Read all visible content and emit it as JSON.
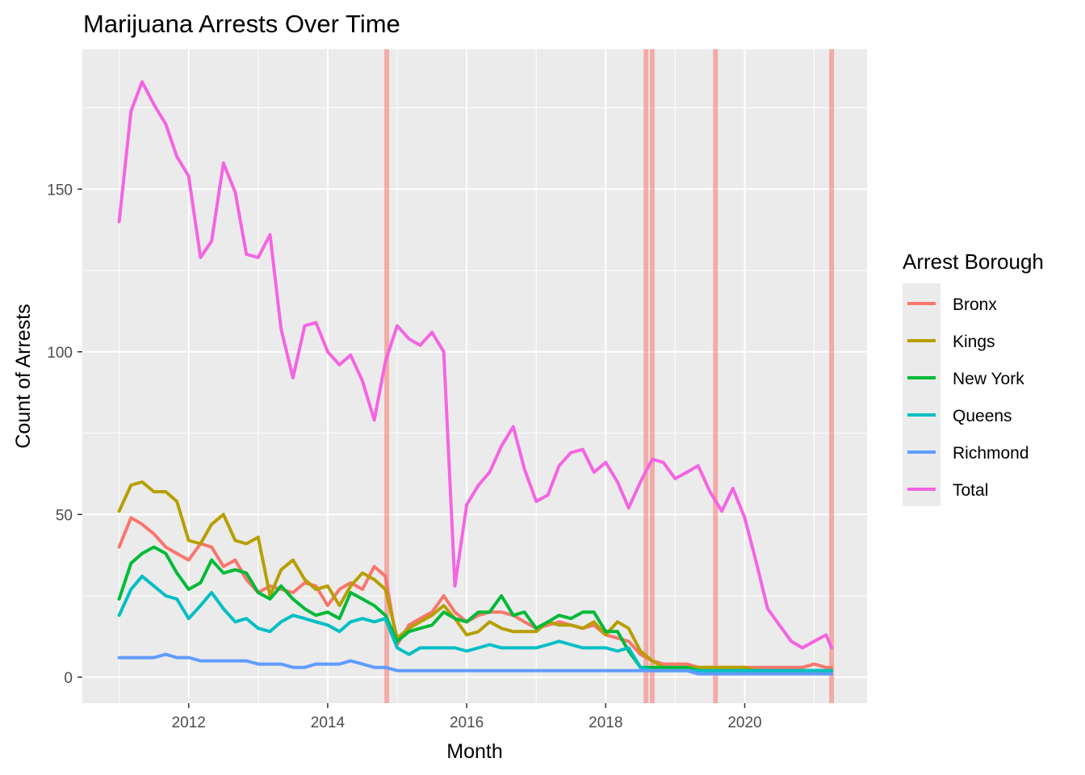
{
  "chart_data": {
    "type": "line",
    "title": "Marijuana Arrests Over Time",
    "xlabel": "Month",
    "ylabel": "Count of Arrests",
    "xlim": [
      2010.47,
      2021.76
    ],
    "ylim": [
      -8,
      193
    ],
    "x_ticks": [
      2012,
      2014,
      2016,
      2018,
      2020
    ],
    "y_ticks": [
      0,
      50,
      100,
      150
    ],
    "grid": true,
    "legend": {
      "title": "Arrest Borough",
      "placement": "right"
    },
    "vlines": [
      {
        "x": 2014.85,
        "color": "#F8766D"
      },
      {
        "x": 2018.58,
        "color": "#F8766D"
      },
      {
        "x": 2018.67,
        "color": "#F8766D"
      },
      {
        "x": 2019.58,
        "color": "#F8766D"
      },
      {
        "x": 2021.25,
        "color": "#F8766D"
      }
    ],
    "x": [
      2011.0,
      2011.17,
      2011.33,
      2011.5,
      2011.67,
      2011.83,
      2012.0,
      2012.17,
      2012.33,
      2012.5,
      2012.67,
      2012.83,
      2013.0,
      2013.17,
      2013.33,
      2013.5,
      2013.67,
      2013.83,
      2014.0,
      2014.17,
      2014.33,
      2014.5,
      2014.67,
      2014.83,
      2015.0,
      2015.17,
      2015.33,
      2015.5,
      2015.67,
      2015.83,
      2016.0,
      2016.17,
      2016.33,
      2016.5,
      2016.67,
      2016.83,
      2017.0,
      2017.17,
      2017.33,
      2017.5,
      2017.67,
      2017.83,
      2018.0,
      2018.17,
      2018.33,
      2018.5,
      2018.67,
      2018.83,
      2019.0,
      2019.17,
      2019.33,
      2019.5,
      2019.67,
      2019.83,
      2020.0,
      2020.17,
      2020.33,
      2020.5,
      2020.67,
      2020.83,
      2021.0,
      2021.17,
      2021.25
    ],
    "series": [
      {
        "name": "Bronx",
        "color": "#F8766D",
        "values": [
          40,
          49,
          47,
          44,
          40,
          38,
          36,
          41,
          40,
          34,
          36,
          30,
          26,
          28,
          27,
          26,
          29,
          28,
          22,
          27,
          29,
          27,
          34,
          31,
          10,
          16,
          18,
          20,
          25,
          20,
          17,
          19,
          20,
          20,
          19,
          17,
          15,
          16,
          17,
          16,
          15,
          16,
          13,
          12,
          11,
          7,
          5,
          4,
          4,
          4,
          3,
          3,
          3,
          3,
          3,
          3,
          3,
          3,
          3,
          3,
          4,
          3,
          3
        ]
      },
      {
        "name": "Kings",
        "color": "#B79F00",
        "values": [
          51,
          59,
          60,
          57,
          57,
          54,
          42,
          41,
          47,
          50,
          42,
          41,
          43,
          25,
          33,
          36,
          30,
          27,
          28,
          22,
          28,
          32,
          30,
          27,
          12,
          15,
          17,
          19,
          22,
          18,
          13,
          14,
          17,
          15,
          14,
          14,
          14,
          17,
          16,
          16,
          15,
          17,
          13,
          17,
          15,
          8,
          5,
          3,
          3,
          3,
          3,
          3,
          3,
          3,
          3,
          2,
          2,
          2,
          2,
          2,
          2,
          2,
          2
        ]
      },
      {
        "name": "New York",
        "color": "#00BA38",
        "values": [
          24,
          35,
          38,
          40,
          38,
          32,
          27,
          29,
          36,
          32,
          33,
          32,
          26,
          24,
          28,
          24,
          21,
          19,
          20,
          18,
          26,
          24,
          22,
          19,
          11,
          14,
          15,
          16,
          20,
          18,
          17,
          20,
          20,
          25,
          19,
          20,
          15,
          17,
          19,
          18,
          20,
          20,
          14,
          14,
          8,
          3,
          3,
          3,
          3,
          3,
          2,
          2,
          2,
          2,
          2,
          2,
          2,
          2,
          2,
          2,
          2,
          2,
          2
        ]
      },
      {
        "name": "Queens",
        "color": "#00BFC4",
        "values": [
          19,
          27,
          31,
          28,
          25,
          24,
          18,
          22,
          26,
          21,
          17,
          18,
          15,
          14,
          17,
          19,
          18,
          17,
          16,
          14,
          17,
          18,
          17,
          18,
          9,
          7,
          9,
          9,
          9,
          9,
          8,
          9,
          10,
          9,
          9,
          9,
          9,
          10,
          11,
          10,
          9,
          9,
          9,
          8,
          9,
          3,
          2,
          2,
          2,
          2,
          2,
          2,
          2,
          2,
          2,
          2,
          2,
          2,
          2,
          2,
          2,
          2,
          2
        ]
      },
      {
        "name": "Richmond",
        "color": "#619CFF",
        "values": [
          6,
          6,
          6,
          6,
          7,
          6,
          6,
          5,
          5,
          5,
          5,
          5,
          4,
          4,
          4,
          3,
          3,
          4,
          4,
          4,
          5,
          4,
          3,
          3,
          2,
          2,
          2,
          2,
          2,
          2,
          2,
          2,
          2,
          2,
          2,
          2,
          2,
          2,
          2,
          2,
          2,
          2,
          2,
          2,
          2,
          2,
          2,
          2,
          2,
          2,
          1,
          1,
          1,
          1,
          1,
          1,
          1,
          1,
          1,
          1,
          1,
          1,
          1
        ]
      },
      {
        "name": "Total",
        "color": "#F564E3",
        "values": [
          140,
          174,
          183,
          176,
          170,
          160,
          154,
          129,
          134,
          158,
          149,
          130,
          129,
          136,
          107,
          92,
          108,
          109,
          100,
          96,
          99,
          91,
          79,
          97,
          108,
          104,
          102,
          106,
          100,
          28,
          53,
          59,
          63,
          71,
          77,
          64,
          54,
          56,
          65,
          69,
          70,
          63,
          66,
          60,
          52,
          60,
          67,
          66,
          61,
          63,
          65,
          57,
          51,
          58,
          49,
          35,
          21,
          16,
          11,
          9,
          11,
          13,
          9
        ]
      }
    ]
  }
}
